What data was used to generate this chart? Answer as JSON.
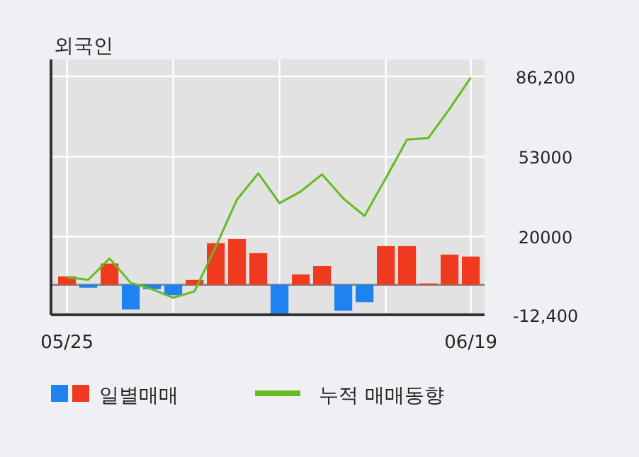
{
  "chart_data": {
    "type": "bar",
    "title": "외국인",
    "categories": [
      "05/25",
      null,
      null,
      null,
      null,
      null,
      null,
      null,
      null,
      null,
      null,
      null,
      null,
      null,
      null,
      null,
      null,
      null,
      null,
      "06/19"
    ],
    "series": [
      {
        "name": "일별매매",
        "colors": [
          "#f03a1f",
          "#1e82f0",
          "#f03a1f",
          "#1e82f0",
          "#1e82f0",
          "#1e82f0",
          "#f03a1f",
          "#f03a1f",
          "#f03a1f",
          "#f03a1f",
          "#1e82f0",
          "#f03a1f",
          "#f03a1f",
          "#1e82f0",
          "#1e82f0",
          "#f03a1f",
          "#f03a1f",
          "#f03a1f",
          "#f03a1f",
          "#f03a1f"
        ],
        "values": [
          3500,
          -1200,
          8800,
          -10200,
          -1800,
          -4300,
          2000,
          17200,
          18900,
          13100,
          -12300,
          4300,
          7800,
          -10700,
          -7200,
          16000,
          16000,
          600,
          12500,
          11700
        ]
      },
      {
        "name": "누적 매매동향",
        "type": "line",
        "color": "#66bb22",
        "values": [
          3100,
          2100,
          10900,
          800,
          -1800,
          -5300,
          -2700,
          15800,
          35300,
          46100,
          33800,
          38600,
          45700,
          35700,
          28500,
          44100,
          60100,
          60700,
          72800,
          85700
        ]
      }
    ],
    "ylim": [
      -12400,
      86200
    ],
    "yticks": [
      {
        "value": 86200,
        "label": "86,200"
      },
      53000,
      20000,
      {
        "value": -12400,
        "label": "-12,400"
      }
    ],
    "grid": true,
    "legend": "bottom"
  }
}
